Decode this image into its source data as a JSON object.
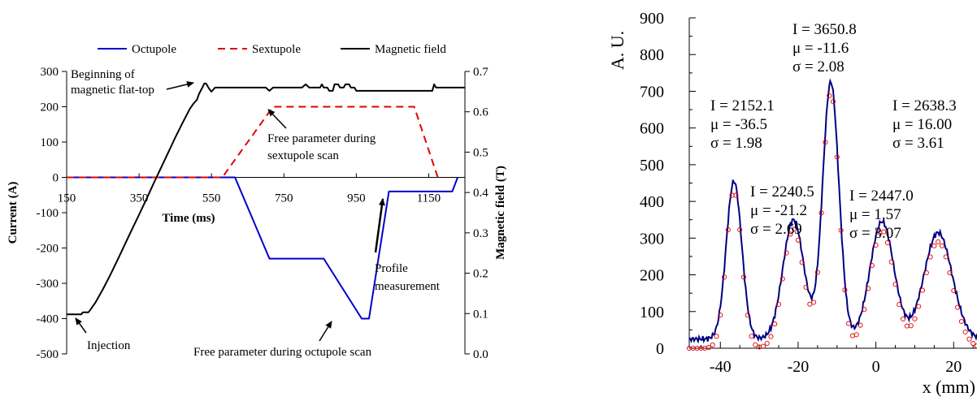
{
  "chart_data": [
    {
      "type": "line",
      "xlabel": "Time (ms)",
      "ylabel": "Current (A)",
      "y2label": "Magnetic field (T)",
      "xlim": [
        150,
        1250
      ],
      "ylim": [
        -500,
        300
      ],
      "y2lim": [
        0.0,
        0.7
      ],
      "x_ticks": [
        "150",
        "350",
        "550",
        "750",
        "950",
        "1150"
      ],
      "y_ticks": [
        "300",
        "200",
        "100",
        "0",
        "-100",
        "-200",
        "-300",
        "-400",
        "-500"
      ],
      "y2_ticks": [
        "0.7",
        "0.6",
        "0.5",
        "0.4",
        "0.3",
        "0.2",
        "0.1",
        "0.0"
      ],
      "legend": {
        "placement": "top",
        "entries": [
          "Octupole",
          "Sextupole",
          "Magnetic field"
        ]
      },
      "series": [
        {
          "name": "Octupole",
          "color": "#0000cc",
          "style": "solid",
          "axis": "left",
          "x": [
            150,
            615,
            710,
            860,
            965,
            985,
            1040,
            1215,
            1230
          ],
          "y": [
            0,
            0,
            -230,
            -230,
            -400,
            -400,
            -40,
            -40,
            0
          ]
        },
        {
          "name": "Sextupole",
          "color": "#e00000",
          "style": "dashed",
          "axis": "left",
          "x": [
            150,
            580,
            720,
            1110,
            1175
          ],
          "y": [
            0,
            0,
            200,
            200,
            0
          ]
        },
        {
          "name": "Magnetic field",
          "color": "#000000",
          "style": "solid",
          "axis": "right",
          "x": [
            150,
            190,
            195,
            210,
            215,
            230,
            250,
            270,
            290,
            310,
            330,
            350,
            370,
            390,
            410,
            430,
            450,
            470,
            490,
            500,
            510,
            515,
            520,
            525,
            530,
            535,
            545,
            550,
            560,
            700,
            710,
            720,
            800,
            810,
            820,
            850,
            855,
            860,
            870,
            875,
            885,
            890,
            900,
            905,
            915,
            920,
            930,
            935,
            945,
            950,
            1160,
            1165,
            1170,
            1250
          ],
          "y": [
            0.098,
            0.098,
            0.103,
            0.103,
            0.109,
            0.128,
            0.16,
            0.195,
            0.232,
            0.27,
            0.308,
            0.345,
            0.383,
            0.422,
            0.46,
            0.498,
            0.536,
            0.572,
            0.607,
            0.62,
            0.63,
            0.643,
            0.652,
            0.66,
            0.67,
            0.67,
            0.655,
            0.65,
            0.66,
            0.66,
            0.652,
            0.66,
            0.66,
            0.668,
            0.66,
            0.66,
            0.668,
            0.66,
            0.66,
            0.652,
            0.652,
            0.668,
            0.668,
            0.66,
            0.66,
            0.668,
            0.668,
            0.66,
            0.66,
            0.652,
            0.652,
            0.668,
            0.66,
            0.66
          ]
        }
      ],
      "annotations": [
        "Beginning of",
        "magnetic flat-top",
        "Free parameter during",
        "sextupole scan",
        "Profile",
        "measurement",
        "Injection",
        "Free parameter during octupole scan"
      ]
    },
    {
      "type": "line",
      "xlabel": "x (mm)",
      "ylabel": "A. U.",
      "xlim": [
        -48,
        26
      ],
      "ylim": [
        0,
        900
      ],
      "x_ticks": [
        "-40",
        "-20",
        "0",
        "20"
      ],
      "y_ticks": [
        "900",
        "800",
        "700",
        "600",
        "500",
        "400",
        "300",
        "200",
        "100",
        "0"
      ],
      "peaks": [
        {
          "mu": -36.5,
          "sigma": 1.98,
          "height": 430
        },
        {
          "mu": -21.2,
          "sigma": 2.69,
          "height": 325
        },
        {
          "mu": -11.6,
          "sigma": 2.08,
          "height": 700
        },
        {
          "mu": 1.57,
          "sigma": 3.07,
          "height": 320
        },
        {
          "mu": 16.0,
          "sigma": 3.61,
          "height": 290
        }
      ],
      "series": [
        {
          "name": "",
          "color": "#000080",
          "style": "solid",
          "baseline": 25
        },
        {
          "name": "",
          "color": "#e00000",
          "style": "circles",
          "baseline": 0
        }
      ],
      "fit_labels": [
        {
          "I": "I  = 3650.8",
          "mu": "μ = -11.6",
          "sigma": "σ = 2.08"
        },
        {
          "I": "I  = 2152.1",
          "mu": "μ = -36.5",
          "sigma": "σ = 1.98"
        },
        {
          "I": "I  = 2638.3",
          "mu": "μ = 16.00",
          "sigma": "σ = 3.61"
        },
        {
          "I": "I  = 2240.5",
          "mu": "μ = -21.2",
          "sigma": "σ = 2.69"
        },
        {
          "I": "I  = 2447.0",
          "mu": "μ = 1.57",
          "sigma": "σ = 3.07"
        }
      ]
    }
  ]
}
